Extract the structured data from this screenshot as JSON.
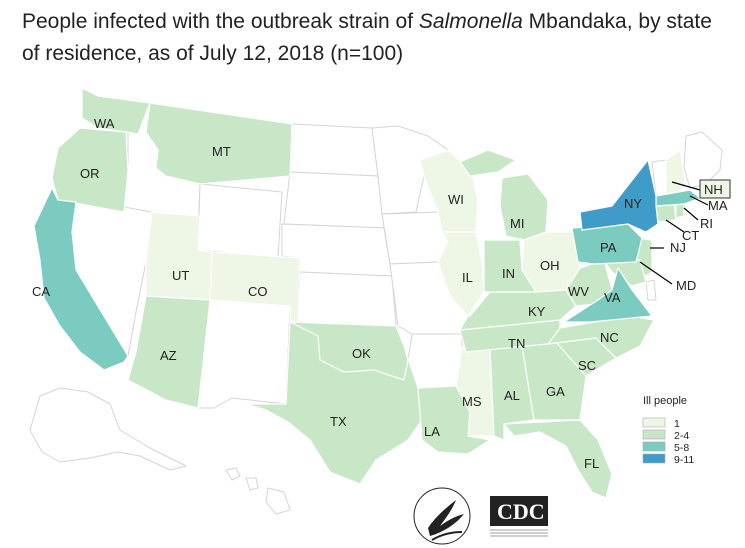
{
  "title": {
    "prefix": "People infected with the outbreak strain of ",
    "organism": "Salmonella",
    "suffix": " Mbandaka, by state of residence, as of July 12, 2018 (n=100)"
  },
  "colors": {
    "none": "#ffffff",
    "c1": "#eef6e5",
    "c2": "#c7e7c7",
    "c5": "#7ccbc0",
    "c9": "#3f9cc9",
    "border": "#d0d0d0"
  },
  "legend": {
    "title": "Ill people",
    "items": [
      {
        "label": "1",
        "color": "#eef6e5"
      },
      {
        "label": "2-4",
        "color": "#c7e7c7"
      },
      {
        "label": "5-8",
        "color": "#7ccbc0"
      },
      {
        "label": "9-11",
        "color": "#3f9cc9"
      }
    ]
  },
  "states": {
    "WA": "WA",
    "OR": "OR",
    "CA": "CA",
    "MT": "MT",
    "UT": "UT",
    "CO": "CO",
    "AZ": "AZ",
    "TX": "TX",
    "OK": "OK",
    "LA": "LA",
    "MS": "MS",
    "AL": "AL",
    "GA": "GA",
    "FL": "FL",
    "SC": "SC",
    "NC": "NC",
    "TN": "TN",
    "KY": "KY",
    "VA": "VA",
    "WV": "WV",
    "OH": "OH",
    "IN": "IN",
    "IL": "IL",
    "WI": "WI",
    "MI": "MI",
    "PA": "PA",
    "NY": "NY",
    "NJ": "NJ",
    "MD": "MD",
    "CT": "CT",
    "RI": "RI",
    "MA": "MA",
    "NH": "NH"
  },
  "logos": {
    "hhs": "HEALTH & HUMAN SERVICES USA",
    "cdc": "CDC",
    "cdc_tagline": "CENTERS FOR DISEASE CONTROL AND PREVENTION"
  }
}
